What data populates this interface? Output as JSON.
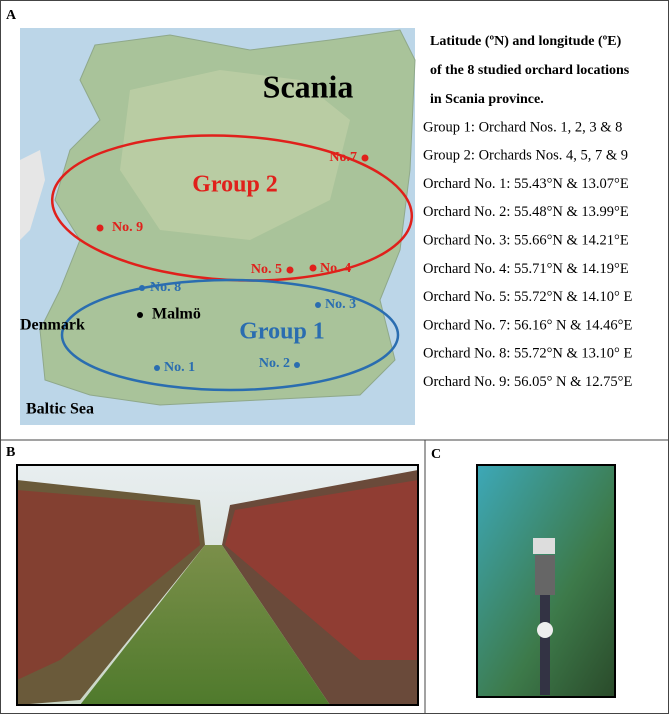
{
  "panel_a": {
    "label": "A",
    "map": {
      "region": "Scania",
      "groups": [
        "Group 2",
        "Group 1"
      ],
      "sites": [
        "No.7",
        "No. 9",
        "No. 5",
        "No. 4",
        "No. 8",
        "No. 3",
        "No. 2",
        "No. 1"
      ],
      "places": [
        "Malmö",
        "Denmark",
        "Baltic Sea"
      ]
    },
    "legend": {
      "heading": [
        "Latitude (ºN) and longitude (ºE)",
        "of the 8 studied orchard locations",
        "in Scania province."
      ],
      "lines": [
        "Group 1: Orchard Nos. 1, 2, 3 & 8",
        "Group 2: Orchards Nos. 4, 5, 7 & 9",
        "Orchard No. 1: 55.43°N & 13.07°E",
        "Orchard No. 2: 55.48°N & 13.99°E",
        "Orchard No. 3: 55.66°N & 14.21°E",
        "Orchard No. 4: 55.71°N & 14.19°E",
        "Orchard No. 5: 55.72°N & 14.10° E",
        "Orchard No. 7: 56.16° N & 14.46°E",
        "Orchard No. 8: 55.72°N & 13.10° E",
        "Orchard No. 9: 56.05° N & 12.75°E"
      ]
    }
  },
  "panel_b": {
    "label": "B"
  },
  "panel_c": {
    "label": "C"
  }
}
